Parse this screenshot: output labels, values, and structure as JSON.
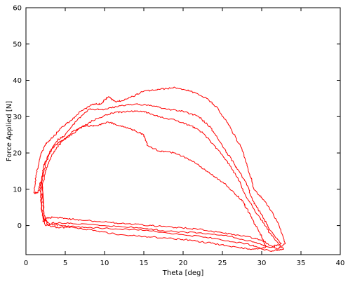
{
  "chart_data": {
    "type": "line",
    "xlabel": "Theta [deg]",
    "ylabel": "Force Applied [N]",
    "xlim": [
      0,
      40
    ],
    "ylim": [
      -8,
      60
    ],
    "xticks": [
      0,
      5,
      10,
      15,
      20,
      25,
      30,
      35,
      40
    ],
    "yticks": [
      0,
      10,
      20,
      30,
      40,
      50,
      60
    ],
    "xtick_labels": [
      "0",
      "5",
      "10",
      "15",
      "20",
      "25",
      "30",
      "35",
      "40"
    ],
    "ytick_labels": [
      "0",
      "10",
      "20",
      "30",
      "40",
      "50",
      "60"
    ],
    "grid": false,
    "legend": false,
    "series_color": "#ff0000",
    "series": [
      {
        "x": [
          1.0,
          1.3,
          1.8,
          2.5,
          3.5,
          4.5,
          5.5,
          7.0,
          8.5,
          9.5,
          10.5,
          11.5,
          13.0,
          15.0,
          17.0,
          19.0,
          21.0,
          23.0,
          24.5,
          26.0,
          27.5,
          28.5,
          29.0,
          30.5,
          32.0,
          33.0,
          32.0,
          30.0,
          28.0,
          25.0,
          22.0,
          19.0,
          16.0,
          13.0,
          10.0,
          7.0,
          5.0,
          3.5,
          2.6,
          2.2,
          2.0,
          1.9,
          1.5,
          1.0
        ],
        "y": [
          9.0,
          14.0,
          19.0,
          22.5,
          24.5,
          27.0,
          28.5,
          31.5,
          33.5,
          33.5,
          35.5,
          34.0,
          35.0,
          37.0,
          37.5,
          38.0,
          37.0,
          35.0,
          32.0,
          27.0,
          21.0,
          14.0,
          10.0,
          6.5,
          1.0,
          -5.0,
          -6.5,
          -4.0,
          -3.0,
          -2.0,
          -1.0,
          -0.5,
          0.0,
          0.5,
          1.0,
          1.5,
          2.0,
          2.3,
          2.0,
          1.0,
          5.0,
          12.0,
          9.0,
          9.0
        ]
      },
      {
        "x": [
          1.8,
          2.2,
          3.0,
          4.0,
          5.0,
          6.5,
          8.0,
          10.0,
          12.0,
          14.0,
          16.0,
          18.0,
          20.0,
          22.0,
          23.5,
          25.0,
          26.5,
          28.0,
          28.8,
          30.0,
          31.0,
          32.5,
          31.0,
          29.0,
          26.0,
          22.0,
          18.0,
          14.0,
          10.0,
          6.0,
          3.5,
          2.5,
          2.0,
          1.8
        ],
        "y": [
          10.0,
          16.0,
          20.0,
          23.5,
          25.0,
          29.0,
          32.0,
          32.0,
          33.0,
          33.5,
          33.0,
          32.0,
          31.5,
          30.0,
          27.0,
          22.0,
          17.0,
          12.0,
          7.0,
          3.0,
          -1.0,
          -5.0,
          -6.0,
          -4.5,
          -3.0,
          -2.0,
          -1.5,
          -0.5,
          0.0,
          0.5,
          0.8,
          0.0,
          4.0,
          10.0
        ]
      },
      {
        "x": [
          2.0,
          2.5,
          3.2,
          4.2,
          5.5,
          7.0,
          9.0,
          11.0,
          13.0,
          15.0,
          17.0,
          19.0,
          21.0,
          22.5,
          24.0,
          25.5,
          27.0,
          28.0,
          29.5,
          31.0,
          32.8,
          31.0,
          28.0,
          24.0,
          20.0,
          16.0,
          12.0,
          8.0,
          5.0,
          3.0,
          2.3,
          2.0
        ],
        "y": [
          12.0,
          17.0,
          21.0,
          23.0,
          24.5,
          27.0,
          29.5,
          31.0,
          31.5,
          31.5,
          30.0,
          29.0,
          27.5,
          25.5,
          22.0,
          18.0,
          13.0,
          8.0,
          3.0,
          -2.0,
          -6.5,
          -7.0,
          -5.0,
          -3.5,
          -2.5,
          -1.5,
          -1.0,
          -0.5,
          0.0,
          0.3,
          2.0,
          12.0
        ]
      },
      {
        "x": [
          2.1,
          2.6,
          3.5,
          4.5,
          6.0,
          7.5,
          9.0,
          10.5,
          12.0,
          13.5,
          15.0,
          15.5,
          17.0,
          19.0,
          21.0,
          23.0,
          25.0,
          26.5,
          27.5,
          28.0,
          29.0,
          30.0,
          30.5,
          29.0,
          27.0,
          24.0,
          21.0,
          18.0,
          15.0,
          12.0,
          9.0,
          6.0,
          4.0,
          2.8,
          2.3,
          2.1
        ],
        "y": [
          11.0,
          16.0,
          20.0,
          23.0,
          26.0,
          27.5,
          27.5,
          28.5,
          27.5,
          26.5,
          25.0,
          22.0,
          20.5,
          20.0,
          18.0,
          15.0,
          12.0,
          9.0,
          7.0,
          5.0,
          1.0,
          -3.0,
          -6.0,
          -6.5,
          -6.0,
          -5.0,
          -4.0,
          -3.5,
          -3.0,
          -2.5,
          -1.5,
          -0.5,
          -0.5,
          0.0,
          3.0,
          11.0
        ]
      }
    ]
  }
}
